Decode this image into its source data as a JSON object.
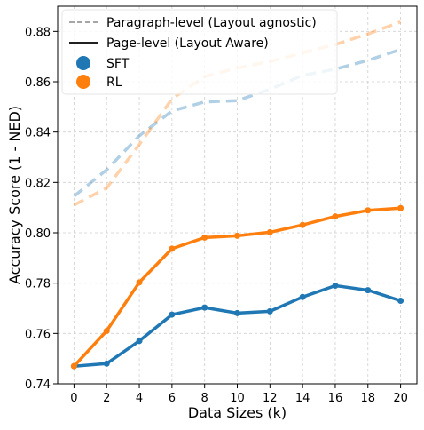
{
  "chart_data": {
    "type": "line",
    "xlabel": "Data Sizes (k)",
    "ylabel": "Accuracy Score (1 - NED)",
    "xlim": [
      -1,
      21
    ],
    "ylim": [
      0.74,
      0.89
    ],
    "x": [
      0,
      2,
      4,
      6,
      8,
      10,
      12,
      14,
      16,
      18,
      20
    ],
    "x_ticks": [
      "0",
      "2",
      "4",
      "6",
      "8",
      "10",
      "12",
      "14",
      "16",
      "18",
      "20"
    ],
    "y_ticks": [
      "0.74",
      "0.76",
      "0.78",
      "0.80",
      "0.82",
      "0.84",
      "0.86",
      "0.88"
    ],
    "y_tick_values": [
      0.74,
      0.76,
      0.78,
      0.8,
      0.82,
      0.84,
      0.86,
      0.88
    ],
    "grid": true,
    "legend_position": "top-left",
    "legend": [
      {
        "label": "Paragraph-level (Layout agnostic)",
        "kind": "dashed-line"
      },
      {
        "label": "Page-level (Layout Aware)",
        "kind": "solid-line"
      },
      {
        "label": "SFT",
        "kind": "dot",
        "color": "#1f77b4"
      },
      {
        "label": "RL",
        "kind": "dot",
        "color": "#ff7f0e"
      }
    ],
    "series": [
      {
        "name": "SFT",
        "level": "Page-level (Layout Aware)",
        "style": "solid",
        "color": "#1f77b4",
        "values": [
          0.747,
          0.748,
          0.757,
          0.7675,
          0.7703,
          0.7681,
          0.7688,
          0.7745,
          0.779,
          0.7772,
          0.773
        ]
      },
      {
        "name": "RL",
        "level": "Page-level (Layout Aware)",
        "style": "solid",
        "color": "#ff7f0e",
        "values": [
          0.747,
          0.761,
          0.7803,
          0.7937,
          0.7981,
          0.7988,
          0.8002,
          0.8031,
          0.8065,
          0.8089,
          0.8098
        ]
      },
      {
        "name": "SFT",
        "level": "Paragraph-level (Layout agnostic)",
        "style": "dashed",
        "color": "#1f77b4",
        "values": [
          0.8145,
          0.825,
          0.8385,
          0.8484,
          0.852,
          0.8525,
          0.857,
          0.8625,
          0.865,
          0.8685,
          0.8728
        ]
      },
      {
        "name": "RL",
        "level": "Paragraph-level (Layout agnostic)",
        "style": "dashed",
        "color": "#ff7f0e",
        "values": [
          0.811,
          0.8178,
          0.835,
          0.8532,
          0.862,
          0.8655,
          0.868,
          0.8715,
          0.8748,
          0.879,
          0.8838
        ]
      }
    ]
  }
}
